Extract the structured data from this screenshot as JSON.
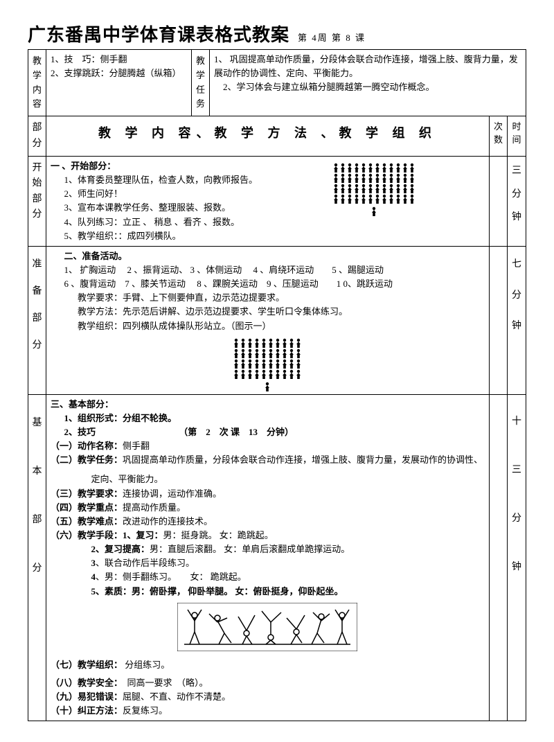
{
  "title": "广东番禺中学体育课表格式教案",
  "subtitle_week": "第 4周",
  "subtitle_lesson": "第  8  课",
  "left_header_label": "教学内容",
  "left_header_content": "1、技　巧：侧手翻\n2、支撑跳跃：分腿腾越（纵箱）",
  "mid_header_label": "教学任务",
  "mid_header_content": "1、 巩固提高单动作质量，分段体会联合动作连接，增强上肢、腹背力量，发展动作的协调性、定向、平衡能力。\n　2、学习体会与建立纵箱分腿腾越第一腾空动作概念。",
  "col_part": "部分",
  "col_content_head": "教 学 内 容、教 学 方 法 、教 学 组 织",
  "col_count": "次数",
  "col_time": "时间",
  "start": {
    "label": "开始部分",
    "title": "一 、开始部分：",
    "items": [
      "1、体育委员整理队伍，检查人数，向教师报告。",
      "2、师生问好！",
      "3、宣布本课教学任务、整理服装、报数。",
      "4、队列练习：立正 、 稍息 、看齐 、报数。",
      "5、教学组织：：成四列横队。"
    ],
    "time": "三分钟"
  },
  "prep": {
    "label": "准备部分",
    "title": "二、准备活动。",
    "exercises": "1、 扩胸运动　 2 、振背运动、   3 、体侧运动　 4 、肩绕环运动　　5 、踢腿运动\n6 、腹背运动　7 、膝关节运动　  8 、踝腕关运动　9 、压腿运动　　1 0、跳跃运动",
    "req": "教学要求：手臂、上下侧要伸直，边示范边提要求。",
    "method": "教学方法：先示范后讲解、边示范边提要求、学生听口令集体练习。",
    "org": "教学组织：四列横队成体操队形站立。（图示一）",
    "time": "七分钟"
  },
  "basic": {
    "label": "基本部分",
    "title": "三、基本部分：",
    "l1": "1、组织形式：分组不轮换。",
    "l2": "2、技巧",
    "l2b": "（第　2　次 课　13　分钟）",
    "p1": "（一）动作名称：侧手翻",
    "p2a": "（二）教学任务：",
    "p2b": "巩固提高单动作质量，分段体会联合动作连接，增强上肢、腹背力量，发展动作的协调性、",
    "p2c": "定向、平衡能力。",
    "p3": "（三）教学要求：连接协调，运动作准确。",
    "p4": "（四）教学重点：提高动作质量。",
    "p5": "（五）教学难点：改进动作的连接技术。",
    "p6": "（六）教学手段：1、复习：男：挺身跳。 女：跪跳起。",
    "p6b": "2、复习提高：男：直腿后滚翻。 女：单肩后滚翻成单跪撑运动。",
    "p6c": "3、联合动作后半段练习。",
    "p6d": "4、男：侧手翻练习。　　女：  跪跳起。",
    "p6e": "5、素质：男：俯卧撑， 仰卧举腿。 女：俯卧挺身，仰卧起坐。",
    "p7": "（七）教学组织： 分组练习。",
    "p8": "（八）教学安全：　同高一要求　（略）。",
    "p9": "（九）易犯错误：屈腿、不直、动作不清楚。",
    "p10": "（十）纠正方法：反复练习。",
    "time": "十三分钟"
  },
  "formation": {
    "person": "♠",
    "rows4x12": 4,
    "cols4x12": 12,
    "leader": "♠"
  }
}
